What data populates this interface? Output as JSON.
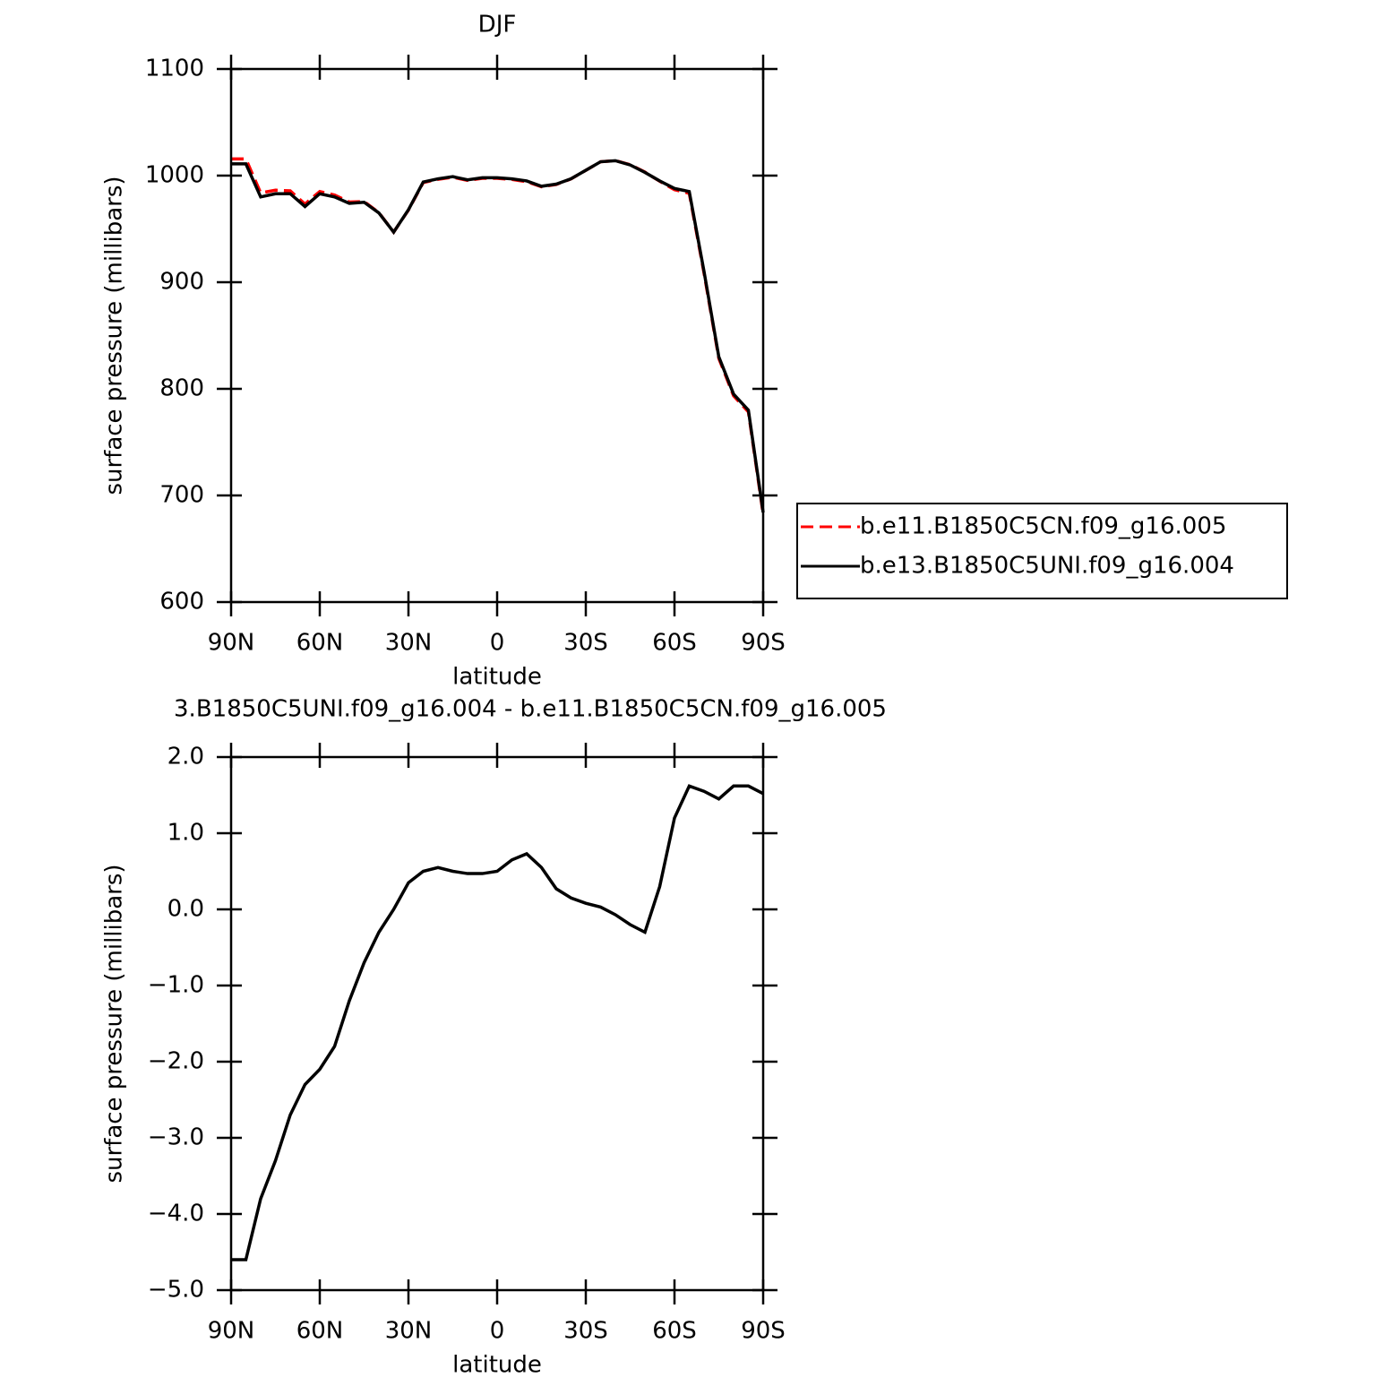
{
  "chart_data": [
    {
      "type": "line",
      "title": "DJF",
      "xlabel": "latitude",
      "ylabel": "surface pressure (millibars)",
      "x": [
        90,
        85,
        80,
        75,
        70,
        65,
        60,
        55,
        50,
        45,
        40,
        35,
        30,
        25,
        20,
        15,
        10,
        5,
        0,
        -5,
        -10,
        -15,
        -20,
        -25,
        -30,
        -35,
        -40,
        -45,
        -50,
        -55,
        -60,
        -65,
        -70,
        -75,
        -80,
        -85,
        -90
      ],
      "series": [
        {
          "name": "b.e11.B1850C5CN.f09_g16.005",
          "color": "#ff0000",
          "dash": "dashed",
          "values": [
            1015.6,
            1015.6,
            983.8,
            986.3,
            985.7,
            973.3,
            985.1,
            981.8,
            975.2,
            975.7,
            965.3,
            947,
            967.7,
            993.5,
            996.5,
            998.5,
            995.5,
            997.5,
            997.5,
            996.4,
            994.3,
            989.5,
            991.7,
            996.9,
            1004.9,
            1013,
            1014.1,
            1010.2,
            1003.3,
            994.7,
            986.8,
            983.4,
            908.5,
            828.6,
            793.4,
            778.4,
            682.5
          ]
        },
        {
          "name": "b.e13.B1850C5UNI.f09_g16.004",
          "color": "#000000",
          "dash": "solid",
          "values": [
            1011,
            1011,
            980,
            983,
            983,
            971,
            983,
            980,
            974,
            975,
            965,
            947,
            968,
            994,
            997,
            999,
            996,
            998,
            998,
            997,
            995,
            990,
            992,
            997,
            1005,
            1013,
            1014,
            1010,
            1003,
            995,
            988,
            985,
            910,
            830,
            795,
            780,
            684
          ]
        }
      ],
      "xlim": [
        90,
        -90
      ],
      "xticks": [
        {
          "value": 90,
          "label": "90N"
        },
        {
          "value": 60,
          "label": "60N"
        },
        {
          "value": 30,
          "label": "30N"
        },
        0,
        {
          "value": -30,
          "label": "30S"
        },
        {
          "value": -60,
          "label": "60S"
        },
        {
          "value": -90,
          "label": "90S"
        }
      ],
      "ylim": [
        600,
        1100
      ],
      "yticks": [
        600,
        700,
        800,
        900,
        1000,
        1100
      ],
      "legend": "right"
    },
    {
      "type": "line",
      "title": "3.B1850C5UNI.f09_g16.004 - b.e11.B1850C5CN.f09_g16.005",
      "xlabel": "latitude",
      "ylabel": "surface pressure (millibars)",
      "x": [
        90,
        85,
        80,
        75,
        70,
        65,
        60,
        55,
        50,
        45,
        40,
        35,
        30,
        25,
        20,
        15,
        10,
        5,
        0,
        -5,
        -10,
        -15,
        -20,
        -25,
        -30,
        -35,
        -40,
        -45,
        -50,
        -55,
        -60,
        -65,
        -70,
        -75,
        -80,
        -85,
        -90
      ],
      "series": [
        {
          "color": "#000000",
          "dash": "solid",
          "values": [
            -4.6,
            -4.6,
            -3.8,
            -3.3,
            -2.7,
            -2.3,
            -2.1,
            -1.8,
            -1.2,
            -0.7,
            -0.3,
            0.0,
            0.35,
            0.5,
            0.55,
            0.5,
            0.47,
            0.47,
            0.5,
            0.65,
            0.73,
            0.55,
            0.27,
            0.15,
            0.08,
            0.03,
            -0.07,
            -0.2,
            -0.3,
            0.3,
            1.2,
            1.62,
            1.55,
            1.45,
            1.62,
            1.62,
            1.52
          ]
        }
      ],
      "xlim": [
        90,
        -90
      ],
      "xticks": [
        {
          "value": 90,
          "label": "90N"
        },
        {
          "value": 60,
          "label": "60N"
        },
        {
          "value": 30,
          "label": "30N"
        },
        0,
        {
          "value": -30,
          "label": "30S"
        },
        {
          "value": -60,
          "label": "60S"
        },
        {
          "value": -90,
          "label": "90S"
        }
      ],
      "ylim": [
        -5,
        2
      ],
      "yticks": [
        {
          "value": -5,
          "label": "−5.0"
        },
        {
          "value": -4,
          "label": "−4.0"
        },
        {
          "value": -3,
          "label": "−3.0"
        },
        {
          "value": -2,
          "label": "−2.0"
        },
        {
          "value": -1,
          "label": "−1.0"
        },
        {
          "value": 0,
          "label": "0.0"
        },
        {
          "value": 1,
          "label": "1.0"
        },
        {
          "value": 2,
          "label": "2.0"
        }
      ]
    }
  ]
}
